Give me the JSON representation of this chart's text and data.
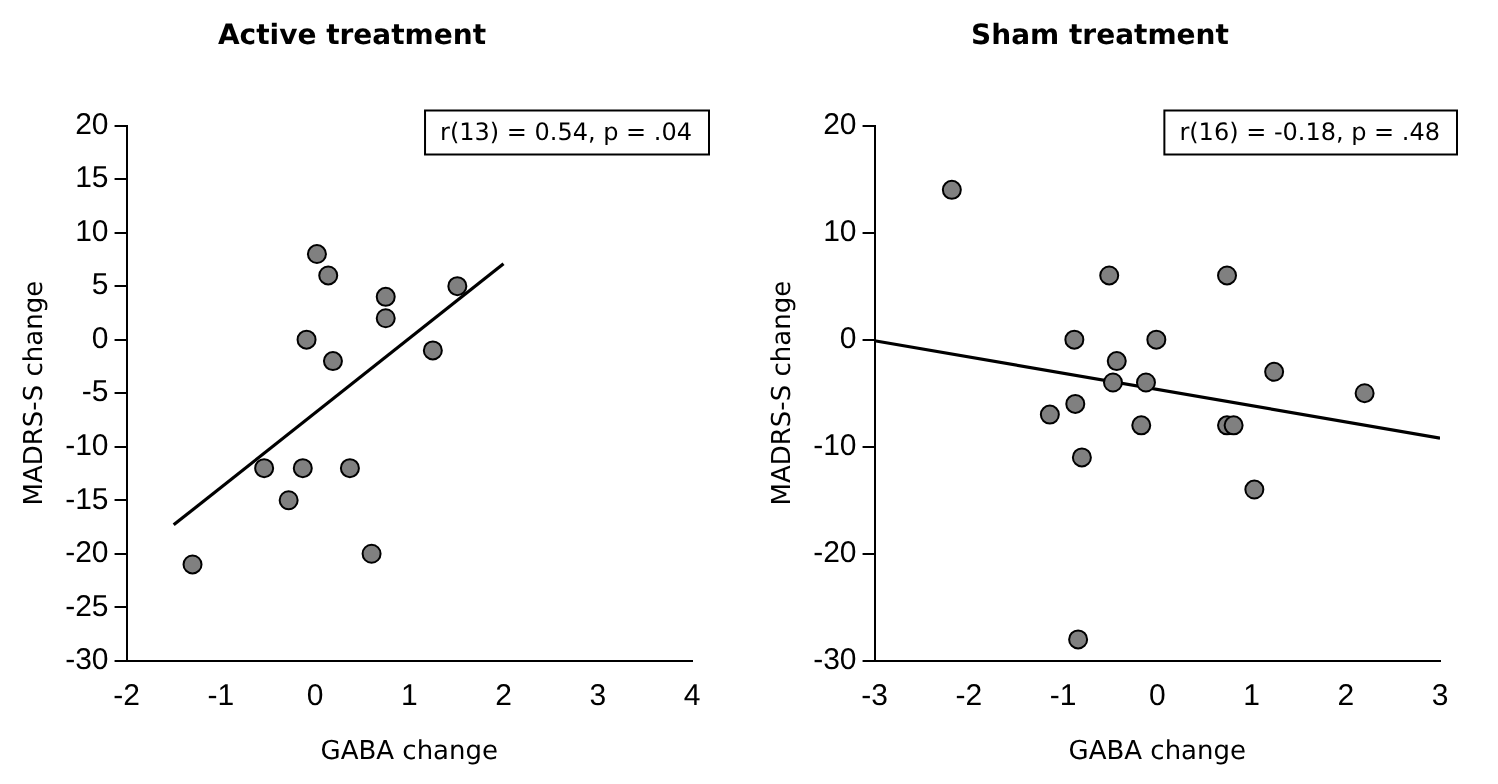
{
  "chart_data": [
    {
      "type": "scatter",
      "title": "Active treatment",
      "xlabel": "GABA change",
      "ylabel": "MADRS-S change",
      "xlim": [
        -2,
        4
      ],
      "xticks": [
        -2,
        -1,
        0,
        1,
        2,
        3,
        4
      ],
      "ylim": [
        -30,
        20
      ],
      "yticks": [
        -30,
        -25,
        -20,
        -15,
        -10,
        -5,
        0,
        5,
        10,
        15,
        20
      ],
      "grid": false,
      "legend": false,
      "marker": "circle",
      "annotations": [
        "r(13) = 0.54, p = .04"
      ],
      "series": [
        {
          "type": "scatter",
          "color": "#808080",
          "x": [
            -1.3,
            -0.54,
            -0.28,
            -0.13,
            -0.09,
            0.02,
            0.14,
            0.19,
            0.37,
            0.6,
            0.75,
            0.75,
            1.25,
            1.51
          ],
          "values": [
            -21,
            -12,
            -15,
            -12,
            0,
            8,
            6,
            -2,
            -12,
            -20,
            4,
            2,
            -1,
            5
          ]
        },
        {
          "type": "line",
          "color": "#000000",
          "marker": "none",
          "x": [
            -1.5,
            2
          ],
          "values": [
            -17.3,
            7.1
          ]
        }
      ]
    },
    {
      "type": "scatter",
      "title": "Sham treatment",
      "xlabel": "GABA change",
      "ylabel": "MADRS-S change",
      "xlim": [
        -3,
        3
      ],
      "xticks": [
        -3,
        -2,
        -1,
        0,
        1,
        2,
        3
      ],
      "ylim": [
        -30,
        20
      ],
      "yticks": [
        -30,
        -20,
        -10,
        0,
        10,
        20
      ],
      "grid": false,
      "legend": false,
      "marker": "circle",
      "annotations": [
        "r(16) = -0.18, p = .48"
      ],
      "series": [
        {
          "type": "scatter",
          "color": "#808080",
          "x": [
            -2.18,
            -0.51,
            0.74,
            -0.88,
            -0.01,
            -0.43,
            -0.47,
            -0.12,
            1.24,
            2.2,
            -1.14,
            -0.87,
            -0.17,
            0.74,
            0.81,
            -0.8,
            1.03,
            -0.84
          ],
          "values": [
            14,
            6,
            6,
            0,
            0,
            -2,
            -4,
            -4,
            -3,
            -5,
            -7,
            -6,
            -8,
            -8,
            -8,
            -11,
            -14,
            -28
          ]
        },
        {
          "type": "line",
          "color": "#000000",
          "marker": "none",
          "x": [
            -3,
            3
          ],
          "values": [
            -0.1,
            -9.2
          ]
        }
      ]
    }
  ]
}
